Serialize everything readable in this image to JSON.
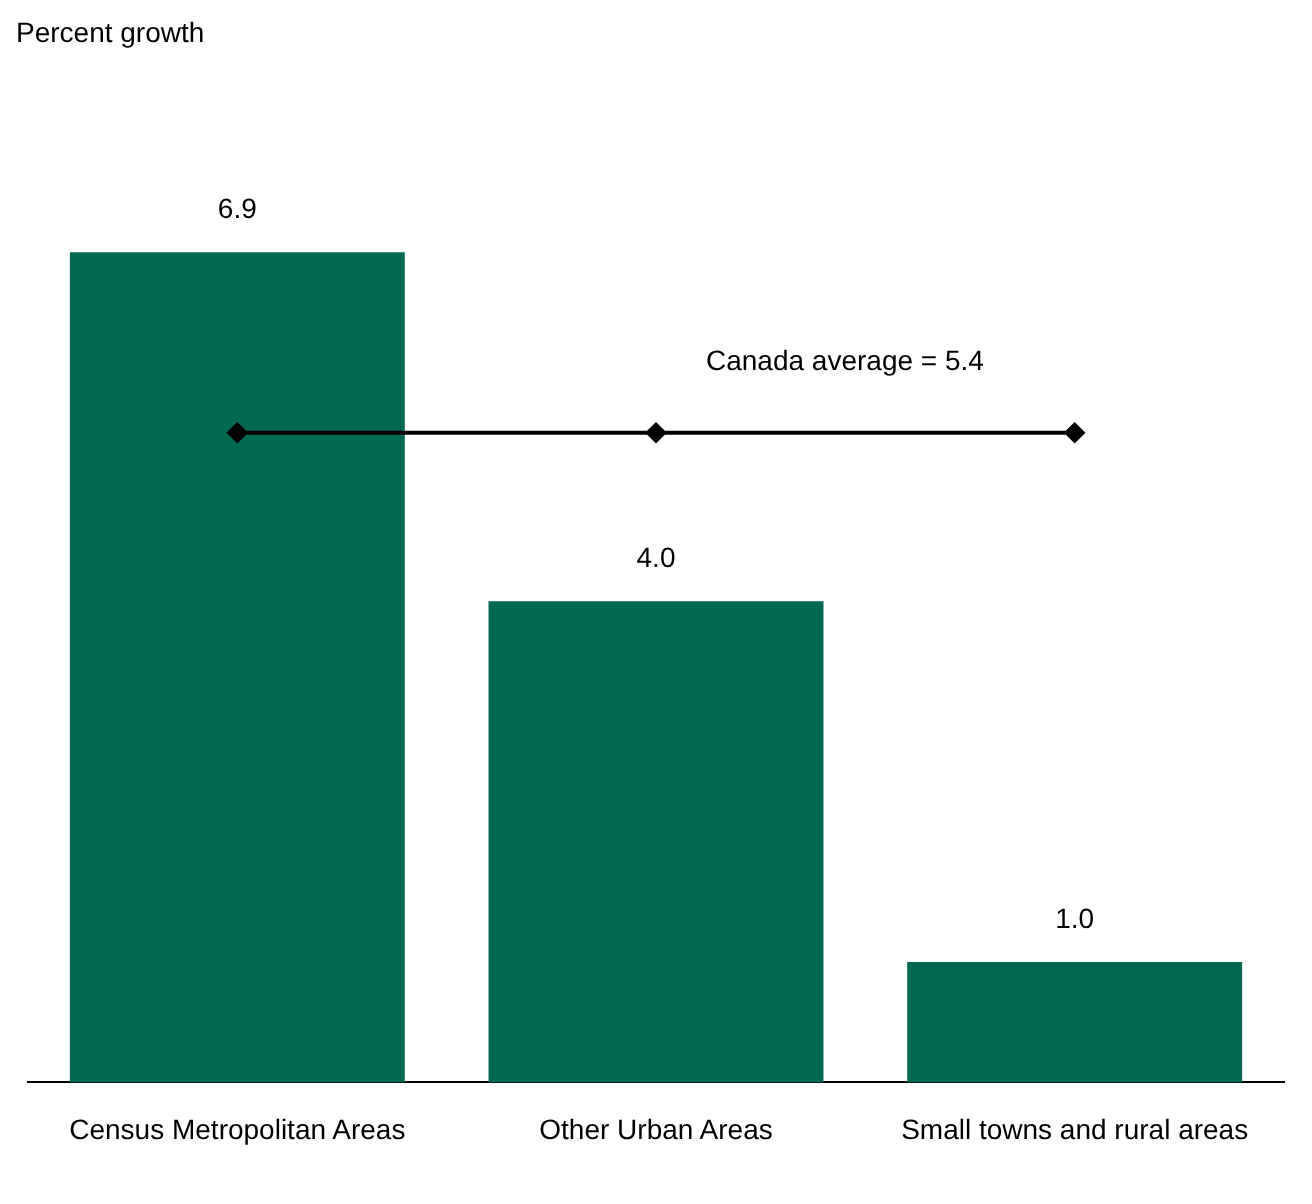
{
  "chart_data": {
    "type": "bar",
    "categories": [
      "Census Metropolitan Areas",
      "Other Urban Areas",
      "Small towns and rural areas"
    ],
    "series": [
      {
        "color": "#006a50",
        "values": [
          6.9,
          4.0,
          1.0
        ],
        "value_labels": [
          "6.9",
          "4.0",
          "1.0"
        ]
      },
      {
        "type": "line",
        "color": "#000000",
        "values": [
          5.4,
          5.4,
          5.4
        ],
        "marker": "diamond",
        "line_style": "solid"
      }
    ],
    "annotations": [
      "Percent growth",
      {
        "text": "Canada average = 5.4",
        "x": "Other Urban Areas",
        "y": 5.4
      }
    ]
  }
}
